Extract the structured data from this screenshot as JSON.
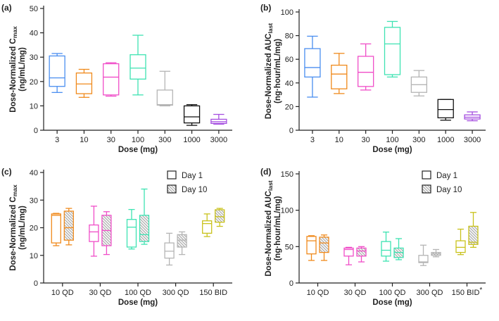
{
  "chart_data": [
    {
      "panel": "(a)",
      "type": "boxplot",
      "ylabel_line1": "Dose-Normalized C",
      "ylabel_sub": "max",
      "ylabel_line2": "(ng/mL/mg)",
      "xlabel": "Dose (mg)",
      "ylim": [
        0,
        50
      ],
      "yticks": [
        0,
        10,
        20,
        30,
        40,
        50
      ],
      "categories": [
        "3",
        "10",
        "30",
        "100",
        "300",
        "1000",
        "3000"
      ],
      "boxes": [
        {
          "cat": "3",
          "min": 15.5,
          "q1": 18,
          "median": 21.5,
          "q3": 30.5,
          "max": 31.5,
          "color": "#4a8ef0",
          "hatched": false
        },
        {
          "cat": "10",
          "min": 13.5,
          "q1": 15,
          "median": 19,
          "q3": 23.5,
          "max": 25,
          "color": "#f08a1c",
          "hatched": false
        },
        {
          "cat": "30",
          "min": 14,
          "q1": 14.5,
          "median": 21.8,
          "q3": 27.3,
          "max": 27.7,
          "color": "#f04ec8",
          "hatched": false
        },
        {
          "cat": "100",
          "min": 14.5,
          "q1": 21,
          "median": 25.5,
          "q3": 31,
          "max": 39,
          "color": "#3ee3b2",
          "hatched": false
        },
        {
          "cat": "300",
          "min": 10,
          "q1": 10.3,
          "median": 10.5,
          "q3": 16.5,
          "max": 24.2,
          "color": "#b5b5b5",
          "hatched": false
        },
        {
          "cat": "1000",
          "min": 2,
          "q1": 3,
          "median": 5.5,
          "q3": 10,
          "max": 10.5,
          "color": "#111111",
          "hatched": false
        },
        {
          "cat": "3000",
          "min": 2.5,
          "q1": 2.8,
          "median": 3.5,
          "q3": 4.5,
          "max": 6.5,
          "color": "#a54ee0",
          "hatched": false
        }
      ]
    },
    {
      "panel": "(b)",
      "type": "boxplot",
      "ylabel_line1": "Dose-Normalized AUC",
      "ylabel_sub": "last",
      "ylabel_line2": "(ng·hour/mL/mg)",
      "xlabel": "Dose (mg)",
      "ylim": [
        0,
        100
      ],
      "yticks": [
        0,
        20,
        40,
        60,
        80,
        100
      ],
      "categories": [
        "3",
        "10",
        "30",
        "100",
        "300",
        "1000",
        "3000"
      ],
      "boxes": [
        {
          "cat": "3",
          "min": 28,
          "q1": 45,
          "median": 53,
          "q3": 69,
          "max": 79.5,
          "color": "#4a8ef0",
          "hatched": false
        },
        {
          "cat": "10",
          "min": 31,
          "q1": 35,
          "median": 47.5,
          "q3": 55,
          "max": 65,
          "color": "#f08a1c",
          "hatched": false
        },
        {
          "cat": "30",
          "min": 34,
          "q1": 37,
          "median": 49,
          "q3": 62.5,
          "max": 73,
          "color": "#f04ec8",
          "hatched": false
        },
        {
          "cat": "100",
          "min": 45,
          "q1": 47,
          "median": 73,
          "q3": 87,
          "max": 92,
          "color": "#3ee3b2",
          "hatched": false
        },
        {
          "cat": "300",
          "min": 29,
          "q1": 32,
          "median": 38.5,
          "q3": 45,
          "max": 50.5,
          "color": "#b5b5b5",
          "hatched": false
        },
        {
          "cat": "1000",
          "min": 8.5,
          "q1": 10.5,
          "median": 17.5,
          "q3": 26,
          "max": 26,
          "color": "#111111",
          "hatched": false
        },
        {
          "cat": "3000",
          "min": 8,
          "q1": 9.5,
          "median": 11,
          "q3": 13,
          "max": 15.5,
          "color": "#a54ee0",
          "hatched": false
        }
      ]
    },
    {
      "panel": "(c)",
      "type": "boxplot",
      "ylabel_line1": "Dose-Normalized C",
      "ylabel_sub": "max",
      "ylabel_line2": "(ng/mL/mg)",
      "xlabel": "Dose (mg)",
      "ylim": [
        0,
        40
      ],
      "yticks": [
        0,
        10,
        20,
        30,
        40
      ],
      "categories": [
        "10 QD",
        "30 QD",
        "100 QD",
        "300 QD",
        "150 BID"
      ],
      "legend": [
        {
          "label": "Day 1",
          "hatched": false
        },
        {
          "label": "Day 10",
          "hatched": true
        }
      ],
      "boxes": [
        {
          "cat": "10 QD",
          "day": 1,
          "min": 13.5,
          "q1": 14.5,
          "median": 24.5,
          "q3": 25,
          "max": 25.2,
          "color": "#f08a1c",
          "hatched": false
        },
        {
          "cat": "10 QD",
          "day": 10,
          "min": 13.8,
          "q1": 15.5,
          "median": 20,
          "q3": 26,
          "max": 27,
          "color": "#f08a1c",
          "hatched": true
        },
        {
          "cat": "30 QD",
          "day": 1,
          "min": 9.7,
          "q1": 15,
          "median": 18.5,
          "q3": 21,
          "max": 27.8,
          "color": "#f04ec8",
          "hatched": false
        },
        {
          "cat": "30 QD",
          "day": 10,
          "min": 10.3,
          "q1": 13.5,
          "median": 19,
          "q3": 24.5,
          "max": 25.8,
          "color": "#f04ec8",
          "hatched": true
        },
        {
          "cat": "100 QD",
          "day": 1,
          "min": 12.3,
          "q1": 13,
          "median": 20.2,
          "q3": 23,
          "max": 26.6,
          "color": "#3ee3b2",
          "hatched": false
        },
        {
          "cat": "100 QD",
          "day": 10,
          "min": 14,
          "q1": 15,
          "median": 17.5,
          "q3": 24.5,
          "max": 34,
          "color": "#3ee3b2",
          "hatched": true
        },
        {
          "cat": "300 QD",
          "day": 1,
          "min": 6.5,
          "q1": 9,
          "median": 11.5,
          "q3": 14.5,
          "max": 18,
          "color": "#b5b5b5",
          "hatched": false
        },
        {
          "cat": "300 QD",
          "day": 10,
          "min": 10.3,
          "q1": 13,
          "median": 15.5,
          "q3": 17.5,
          "max": 18.5,
          "color": "#b5b5b5",
          "hatched": true
        },
        {
          "cat": "150 BID",
          "day": 1,
          "min": 16.8,
          "q1": 18,
          "median": 21.5,
          "q3": 22.5,
          "max": 25,
          "color": "#c9c21c",
          "hatched": false
        },
        {
          "cat": "150 BID",
          "day": 10,
          "min": 20.5,
          "q1": 22,
          "median": 24,
          "q3": 26.5,
          "max": 27,
          "color": "#c9c21c",
          "hatched": true
        }
      ]
    },
    {
      "panel": "(d)",
      "type": "boxplot",
      "ylabel_line1": "Dose-Normalized AUC",
      "ylabel_sub": "last",
      "ylabel_line2": "(ng·hour/mL/mg)",
      "xlabel": "Dose (mg)",
      "ylim": [
        0,
        150
      ],
      "yticks": [
        0,
        50,
        100,
        150
      ],
      "categories": [
        "10 QD",
        "30 QD",
        "100 QD",
        "300 QD",
        "150 BID"
      ],
      "annotation": "*",
      "legend": [
        {
          "label": "Day 1",
          "hatched": false
        },
        {
          "label": "Day 10",
          "hatched": true
        }
      ],
      "boxes": [
        {
          "cat": "10 QD",
          "day": 1,
          "min": 31,
          "q1": 40,
          "median": 58,
          "q3": 64,
          "max": 65,
          "color": "#f08a1c",
          "hatched": false
        },
        {
          "cat": "10 QD",
          "day": 10,
          "min": 31,
          "q1": 42,
          "median": 55,
          "q3": 63,
          "max": 66,
          "color": "#f08a1c",
          "hatched": true
        },
        {
          "cat": "30 QD",
          "day": 1,
          "min": 25,
          "q1": 37,
          "median": 46,
          "q3": 48,
          "max": 49,
          "color": "#f04ec8",
          "hatched": false
        },
        {
          "cat": "30 QD",
          "day": 10,
          "min": 29,
          "q1": 37,
          "median": 44,
          "q3": 48,
          "max": 50,
          "color": "#f04ec8",
          "hatched": true
        },
        {
          "cat": "100 QD",
          "day": 1,
          "min": 30,
          "q1": 37,
          "median": 45,
          "q3": 57,
          "max": 70,
          "color": "#3ee3b2",
          "hatched": false
        },
        {
          "cat": "100 QD",
          "day": 10,
          "min": 32,
          "q1": 35,
          "median": 42,
          "q3": 48,
          "max": 61,
          "color": "#3ee3b2",
          "hatched": true
        },
        {
          "cat": "300 QD",
          "day": 1,
          "min": 24,
          "q1": 28,
          "median": 29,
          "q3": 38,
          "max": 52,
          "color": "#b5b5b5",
          "hatched": false
        },
        {
          "cat": "300 QD",
          "day": 10,
          "min": 36,
          "q1": 38,
          "median": 40,
          "q3": 42,
          "max": 46,
          "color": "#b5b5b5",
          "hatched": true
        },
        {
          "cat": "150 BID",
          "day": 1,
          "min": 39,
          "q1": 42,
          "median": 49,
          "q3": 58,
          "max": 74,
          "color": "#c9c21c",
          "hatched": false
        },
        {
          "cat": "150 BID",
          "day": 10,
          "min": 49,
          "q1": 53,
          "median": 56,
          "q3": 78,
          "max": 97,
          "color": "#c9c21c",
          "hatched": true
        }
      ]
    }
  ]
}
